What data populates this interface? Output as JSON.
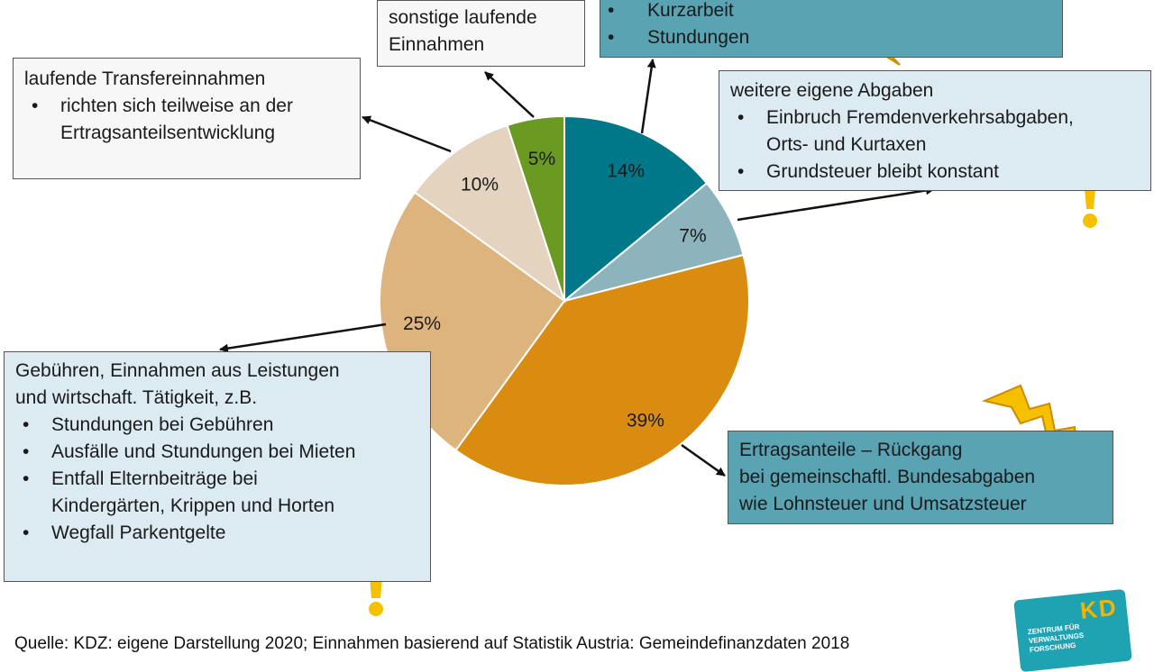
{
  "chart_data": {
    "type": "pie",
    "labels": [
      "14%",
      "7%",
      "39%",
      "25%",
      "10%",
      "5%"
    ],
    "values": [
      14,
      7,
      39,
      25,
      10,
      5
    ],
    "colors": [
      "#00788a",
      "#8db3bd",
      "#d98c10",
      "#deb47e",
      "#e4d4bf",
      "#6a9a22"
    ],
    "start_angle_deg": 0,
    "direction": "clockwise"
  },
  "boxes": {
    "sonstige": {
      "line1": "sonstige laufende",
      "line2": "Einnahmen"
    },
    "kurzarbeit": {
      "items": [
        "Kurzarbeit",
        "Stundungen"
      ]
    },
    "transfer": {
      "title": "laufende Transfereinnahmen",
      "item_line1": "richten sich teilweise an der",
      "item_line2": "Ertragsanteilsentwicklung"
    },
    "abgaben": {
      "title": "weitere eigene Abgaben",
      "item1_line1": "Einbruch Fremdenverkehrsabgaben,",
      "item1_line2": "Orts- und Kurtaxen",
      "item2": "Grundsteuer bleibt konstant"
    },
    "gebuehren": {
      "title_line1": "Gebühren, Einnahmen aus Leistungen",
      "title_line2": "und wirtschaft. Tätigkeit, z.B.",
      "item1": "Stundungen bei Gebühren",
      "item2": "Ausfälle und Stundungen bei Mieten",
      "item3_line1": "Entfall Elternbeiträge bei",
      "item3_line2": "Kindergärten, Krippen und Horten",
      "item4": "Wegfall Parkentgelte"
    },
    "ertrag": {
      "line1": "Ertragsanteile – Rückgang",
      "line2": "bei gemeinschaftl. Bundesabgaben",
      "line3": "wie Lohnsteuer und Umsatzsteuer"
    }
  },
  "footer": {
    "source": "Quelle: KDZ: eigene Darstellung 2020; Einnahmen basierend auf Statistik Austria: Gemeindefinanzdaten 2018"
  },
  "logo": {
    "letters": "KD",
    "text1": "ZENTRUM FÜR",
    "text2": "VERWALTUNGS",
    "text3": "FORSCHUNG"
  },
  "icons": [
    "lightning-icon",
    "exclamation-icon"
  ]
}
